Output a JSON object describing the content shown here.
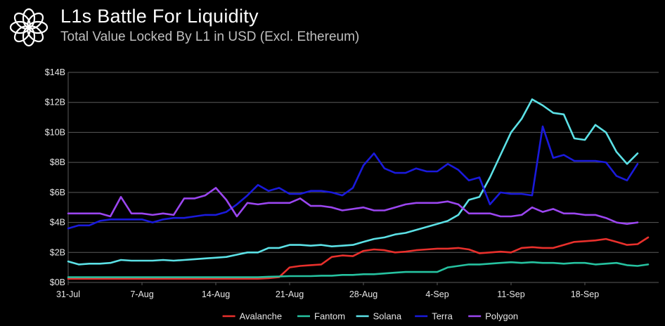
{
  "header": {
    "title": "L1s Battle For Liquidity",
    "subtitle": "Total Value Locked By L1 in USD (Excl. Ethereum)",
    "logo_icon": "flower-ring-logo-icon"
  },
  "colors": {
    "background": "#000000",
    "grid": "#5a5a5a",
    "axis_text": "#e6e6e6"
  },
  "chart_data": {
    "type": "line",
    "title": "L1s Battle For Liquidity",
    "subtitle": "Total Value Locked By L1 in USD (Excl. Ethereum)",
    "xlabel": "",
    "ylabel": "",
    "xlim": [
      0,
      56
    ],
    "ylim": [
      0,
      14
    ],
    "x_ticks": [
      {
        "pos": 0,
        "label": "31-Jul"
      },
      {
        "pos": 7,
        "label": "7-Aug"
      },
      {
        "pos": 14,
        "label": "14-Aug"
      },
      {
        "pos": 21,
        "label": "21-Aug"
      },
      {
        "pos": 28,
        "label": "28-Aug"
      },
      {
        "pos": 35,
        "label": "4-Sep"
      },
      {
        "pos": 42,
        "label": "11-Sep"
      },
      {
        "pos": 49,
        "label": "18-Sep"
      }
    ],
    "y_ticks": [
      {
        "value": 0,
        "label": "$0B"
      },
      {
        "value": 2,
        "label": "$2B"
      },
      {
        "value": 4,
        "label": "$4B"
      },
      {
        "value": 6,
        "label": "$6B"
      },
      {
        "value": 8,
        "label": "$8B"
      },
      {
        "value": 10,
        "label": "$10B"
      },
      {
        "value": 12,
        "label": "$12B"
      },
      {
        "value": 14,
        "label": "$14B"
      }
    ],
    "grid": true,
    "legend_position": "bottom",
    "series": [
      {
        "name": "Avalanche",
        "color": "#e8302c",
        "values": [
          0.25,
          0.25,
          0.25,
          0.25,
          0.25,
          0.25,
          0.25,
          0.25,
          0.25,
          0.25,
          0.25,
          0.25,
          0.25,
          0.25,
          0.25,
          0.25,
          0.25,
          0.25,
          0.25,
          0.28,
          0.35,
          1.0,
          1.1,
          1.15,
          1.2,
          1.7,
          1.8,
          1.75,
          2.1,
          2.2,
          2.15,
          2.0,
          2.05,
          2.15,
          2.2,
          2.25,
          2.25,
          2.3,
          2.2,
          1.95,
          2.0,
          2.05,
          2.0,
          2.3,
          2.35,
          2.3,
          2.3,
          2.5,
          2.7,
          2.75,
          2.8,
          2.9,
          2.7,
          2.5,
          2.55,
          3.0
        ]
      },
      {
        "name": "Fantom",
        "color": "#26c2a0",
        "values": [
          0.35,
          0.35,
          0.35,
          0.35,
          0.35,
          0.35,
          0.35,
          0.35,
          0.35,
          0.35,
          0.35,
          0.35,
          0.35,
          0.35,
          0.35,
          0.35,
          0.35,
          0.35,
          0.35,
          0.38,
          0.4,
          0.42,
          0.42,
          0.42,
          0.45,
          0.45,
          0.5,
          0.5,
          0.55,
          0.55,
          0.6,
          0.65,
          0.7,
          0.7,
          0.7,
          0.7,
          1.0,
          1.1,
          1.2,
          1.2,
          1.25,
          1.3,
          1.35,
          1.3,
          1.35,
          1.3,
          1.3,
          1.25,
          1.3,
          1.3,
          1.2,
          1.25,
          1.3,
          1.15,
          1.1,
          1.2
        ]
      },
      {
        "name": "Solana",
        "color": "#5ce1e6",
        "values": [
          1.4,
          1.2,
          1.25,
          1.25,
          1.3,
          1.5,
          1.45,
          1.45,
          1.45,
          1.5,
          1.45,
          1.5,
          1.55,
          1.6,
          1.65,
          1.7,
          1.85,
          2.0,
          2.0,
          2.3,
          2.3,
          2.5,
          2.5,
          2.45,
          2.5,
          2.4,
          2.45,
          2.5,
          2.7,
          2.9,
          3.0,
          3.2,
          3.3,
          3.5,
          3.7,
          3.9,
          4.1,
          4.5,
          5.5,
          5.7,
          7.0,
          8.5,
          10.0,
          10.9,
          12.2,
          11.8,
          11.3,
          11.2,
          9.6,
          9.5,
          10.5,
          10.0,
          8.7,
          7.9,
          8.6
        ]
      },
      {
        "name": "Terra",
        "color": "#1a1adb",
        "values": [
          3.6,
          3.8,
          3.8,
          4.1,
          4.2,
          4.2,
          4.2,
          4.2,
          4.0,
          4.2,
          4.3,
          4.3,
          4.4,
          4.5,
          4.5,
          4.7,
          5.2,
          5.8,
          6.5,
          6.1,
          6.3,
          5.9,
          5.9,
          6.1,
          6.1,
          6.0,
          5.8,
          6.3,
          7.8,
          8.6,
          7.6,
          7.3,
          7.3,
          7.6,
          7.4,
          7.4,
          7.9,
          7.5,
          6.8,
          7.0,
          5.2,
          6.0,
          5.9,
          5.9,
          5.8,
          10.4,
          8.3,
          8.5,
          8.1,
          8.1,
          8.1,
          8.0,
          7.1,
          6.8,
          7.9
        ]
      },
      {
        "name": "Polygon",
        "color": "#9b46f0",
        "values": [
          4.6,
          4.6,
          4.6,
          4.6,
          4.4,
          5.7,
          4.6,
          4.6,
          4.5,
          4.6,
          4.5,
          5.6,
          5.6,
          5.8,
          6.3,
          5.5,
          4.4,
          5.3,
          5.2,
          5.3,
          5.3,
          5.3,
          5.6,
          5.1,
          5.1,
          5.0,
          4.8,
          4.9,
          5.0,
          4.8,
          4.8,
          5.0,
          5.2,
          5.3,
          5.3,
          5.3,
          5.4,
          5.2,
          4.6,
          4.6,
          4.6,
          4.4,
          4.4,
          4.5,
          5.0,
          4.7,
          4.9,
          4.6,
          4.6,
          4.5,
          4.5,
          4.3,
          4.0,
          3.9,
          4.0
        ]
      }
    ]
  }
}
